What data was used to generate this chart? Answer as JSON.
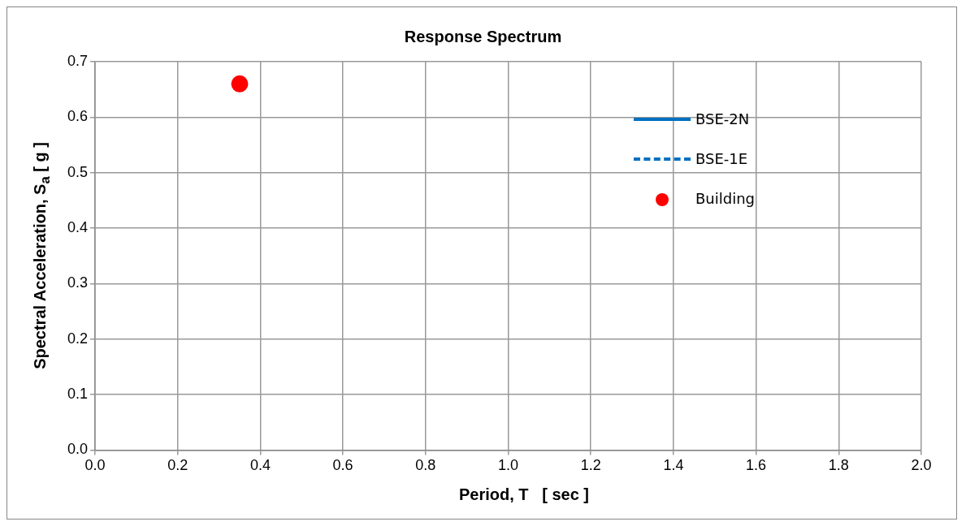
{
  "chart_data": {
    "type": "scatter",
    "title": "Response Spectrum",
    "xlabel": "Period, T   [ sec ]",
    "ylabel": "Spectral Acceleration, S$_{a}$   [ g ]",
    "xlim": [
      0,
      2
    ],
    "xticks": [
      {
        "value": 0,
        "label": "0.0"
      },
      {
        "value": 0.2,
        "label": "0.2"
      },
      {
        "value": 0.4,
        "label": "0.4"
      },
      {
        "value": 0.6,
        "label": "0.6"
      },
      {
        "value": 0.8,
        "label": "0.8"
      },
      {
        "value": 1,
        "label": "1.0"
      },
      {
        "value": 1.2,
        "label": "1.2"
      },
      {
        "value": 1.4,
        "label": "1.4"
      },
      {
        "value": 1.6,
        "label": "1.6"
      },
      {
        "value": 1.8,
        "label": "1.8"
      },
      {
        "value": 2,
        "label": "2.0"
      }
    ],
    "ylim": [
      0,
      0.7
    ],
    "yticks": [
      {
        "value": 0,
        "label": "0.0"
      },
      {
        "value": 0.1,
        "label": "0.1"
      },
      {
        "value": 0.2,
        "label": "0.2"
      },
      {
        "value": 0.3,
        "label": "0.3"
      },
      {
        "value": 0.4,
        "label": "0.4"
      },
      {
        "value": 0.5,
        "label": "0.5"
      },
      {
        "value": 0.6,
        "label": "0.6"
      },
      {
        "value": 0.7,
        "label": "0.7"
      }
    ],
    "grid": true,
    "legend": "top right",
    "series": [
      {
        "name": "BSE-2N",
        "type": "line",
        "line_style": "solid",
        "marker": "none",
        "color": "#0070c0"
      },
      {
        "name": "BSE-1E",
        "type": "line",
        "line_style": "dashed",
        "marker": "none",
        "color": "#0070c0"
      },
      {
        "name": "Building",
        "marker": "circle",
        "color": "#ff0000",
        "x": [
          0.35
        ],
        "values": [
          0.66
        ]
      }
    ]
  }
}
